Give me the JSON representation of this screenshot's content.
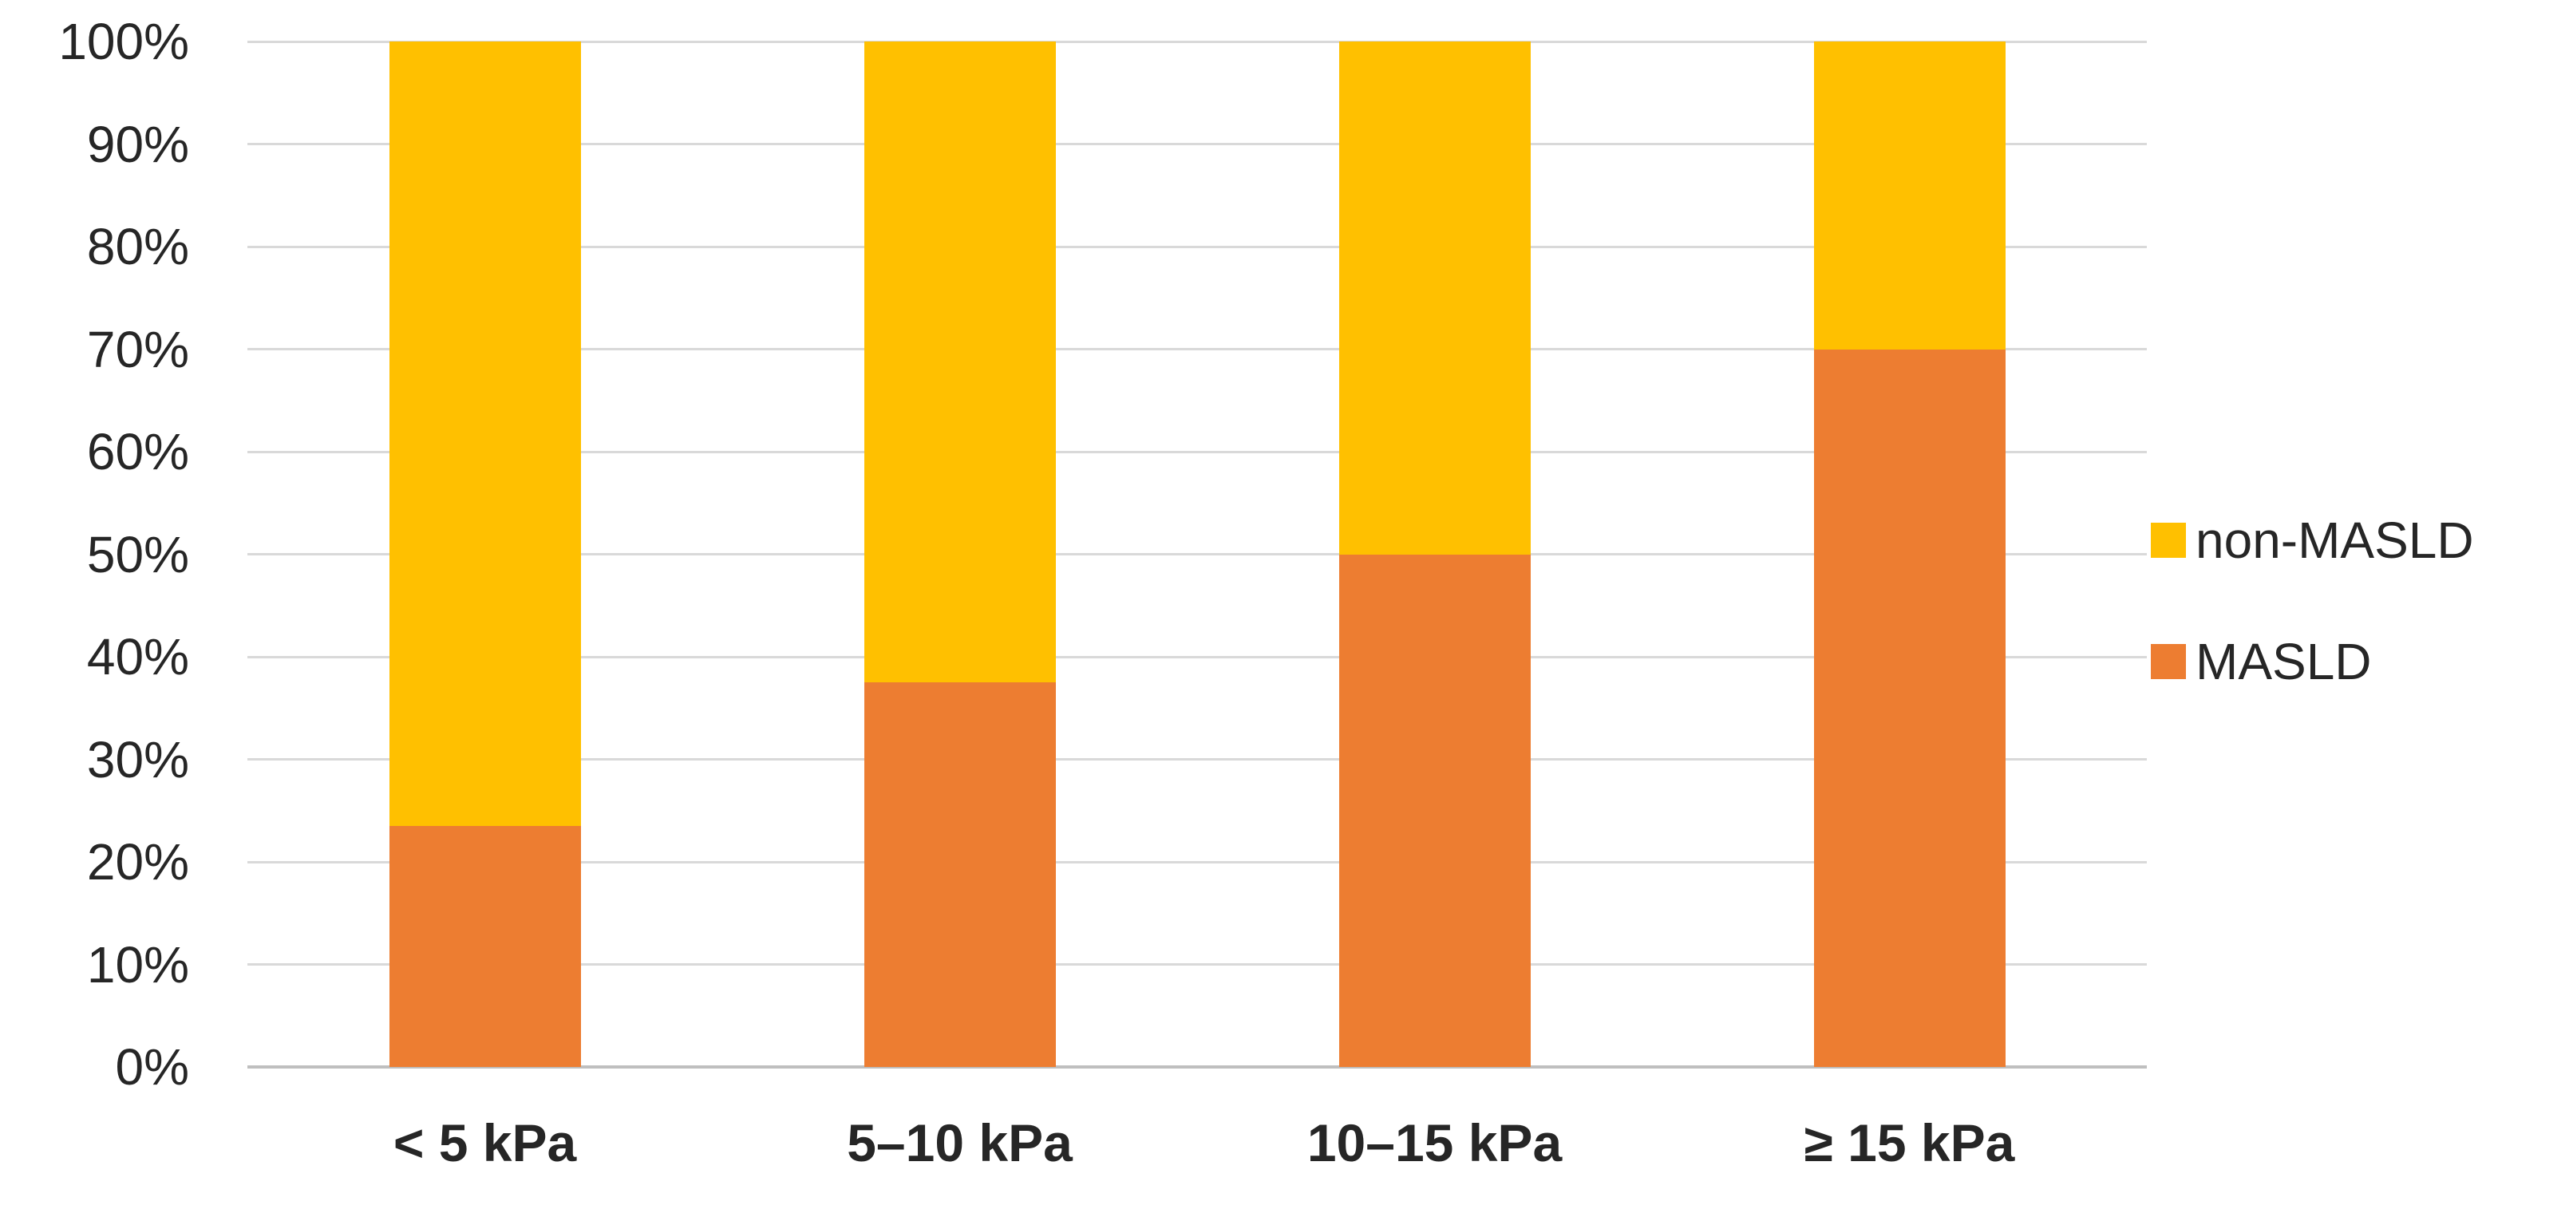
{
  "chart_data": {
    "type": "bar",
    "subtype": "stacked-100-percent",
    "title": "",
    "xlabel": "",
    "ylabel": "",
    "categories": [
      "< 5 kPa",
      "5–10 kPa",
      "10–15 kPa",
      "≥ 15 kPa"
    ],
    "series": [
      {
        "name": "MASLD",
        "color": "#ED7D31",
        "values": [
          23.5,
          37.5,
          50,
          70
        ]
      },
      {
        "name": "non-MASLD",
        "color": "#FFC000",
        "values": [
          76.5,
          62.5,
          50,
          30
        ]
      }
    ],
    "ylim": [
      0,
      100
    ],
    "yticks": [
      "0%",
      "10%",
      "20%",
      "30%",
      "40%",
      "50%",
      "60%",
      "70%",
      "80%",
      "90%",
      "100%"
    ],
    "grid": true,
    "legend_position": "right",
    "legend": [
      "non-MASLD",
      "MASLD"
    ]
  },
  "colors": {
    "masld": "#ED7D31",
    "non_masld": "#FFC000",
    "gridline": "#d9d9d9",
    "axis_line": "#bfbfbf",
    "text": "#262626",
    "background": "#ffffff"
  }
}
